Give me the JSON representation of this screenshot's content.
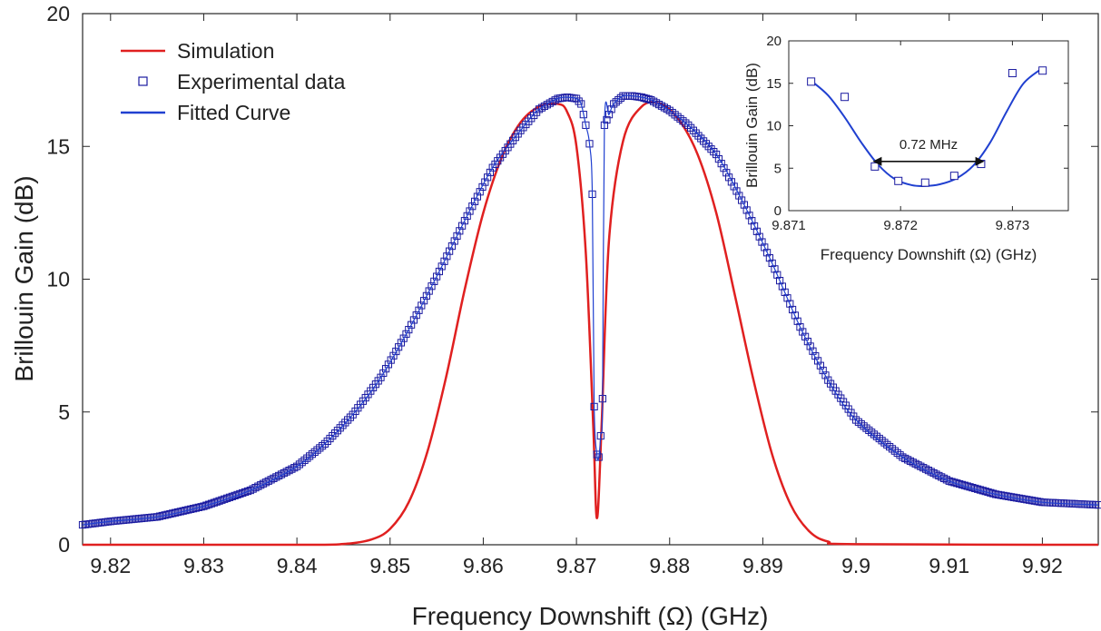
{
  "chart_data": [
    {
      "type": "line",
      "title": "",
      "xlabel": "Frequency Downshift (Ω) (GHz)",
      "ylabel": "Brillouin Gain (dB)",
      "xlim": [
        9.817,
        9.926
      ],
      "ylim": [
        0,
        20
      ],
      "xticks": [
        "9.82",
        "9.83",
        "9.84",
        "9.85",
        "9.86",
        "9.87",
        "9.88",
        "9.89",
        "9.9",
        "9.91",
        "9.92"
      ],
      "yticks": [
        "0",
        "5",
        "10",
        "15",
        "20"
      ],
      "legend": [
        "Simulation",
        "Experimental data",
        "Fitted Curve"
      ],
      "legend_position": "top-left",
      "grid": false,
      "colors": {
        "simulation": "#e02020",
        "experimental": "#1a1aa0",
        "fitted": "#2040d0"
      },
      "series": [
        {
          "name": "Simulation",
          "style": "line",
          "x": [
            9.817,
            9.84,
            9.845,
            9.848,
            9.85,
            9.852,
            9.854,
            9.856,
            9.858,
            9.86,
            9.862,
            9.864,
            9.866,
            9.868,
            9.869,
            9.87,
            9.871,
            9.8718,
            9.8722,
            9.8727,
            9.8735,
            9.875,
            9.877,
            9.879,
            9.881,
            9.883,
            9.885,
            9.887,
            9.889,
            9.891,
            9.893,
            9.895,
            9.897,
            9.9,
            9.926
          ],
          "y": [
            0,
            0,
            0.03,
            0.2,
            0.6,
            1.6,
            3.5,
            6.3,
            9.6,
            12.5,
            14.6,
            15.9,
            16.5,
            16.6,
            16.3,
            15.0,
            11.0,
            4.5,
            1.0,
            4.5,
            11.5,
            15.2,
            16.5,
            16.6,
            16.0,
            14.7,
            12.5,
            9.4,
            6.2,
            3.4,
            1.5,
            0.5,
            0.12,
            0.02,
            0
          ]
        },
        {
          "name": "Experimental data",
          "style": "markers",
          "x": [
            9.817,
            9.82,
            9.825,
            9.83,
            9.835,
            9.84,
            9.843,
            9.846,
            9.849,
            9.852,
            9.855,
            9.858,
            9.861,
            9.864,
            9.866,
            9.868,
            9.869,
            9.87,
            9.8705,
            9.871,
            9.8714,
            9.8717,
            9.8719,
            9.8722,
            9.8724,
            9.8726,
            9.8728,
            9.873,
            9.8735,
            9.874,
            9.875,
            9.876,
            9.877,
            9.878,
            9.88,
            9.882,
            9.885,
            9.888,
            9.891,
            9.894,
            9.897,
            9.9,
            9.905,
            9.91,
            9.915,
            9.92,
            9.926
          ],
          "y": [
            0.75,
            0.88,
            1.05,
            1.45,
            2.05,
            2.95,
            3.8,
            4.9,
            6.3,
            8.1,
            10.1,
            12.2,
            14.2,
            15.6,
            16.4,
            16.8,
            16.85,
            16.8,
            16.6,
            15.8,
            15.1,
            13.2,
            5.2,
            3.4,
            3.3,
            4.1,
            5.5,
            15.8,
            16.2,
            16.6,
            16.9,
            16.9,
            16.85,
            16.75,
            16.35,
            15.8,
            14.7,
            12.8,
            10.6,
            8.2,
            6.2,
            4.7,
            3.3,
            2.4,
            1.9,
            1.6,
            1.5
          ]
        },
        {
          "name": "Fitted Curve",
          "style": "line",
          "x": [
            9.817,
            9.82,
            9.825,
            9.83,
            9.835,
            9.84,
            9.843,
            9.846,
            9.849,
            9.852,
            9.855,
            9.858,
            9.861,
            9.864,
            9.866,
            9.868,
            9.869,
            9.87,
            9.8705,
            9.871,
            9.8714,
            9.8717,
            9.8719,
            9.8722,
            9.8724,
            9.8726,
            9.8728,
            9.873,
            9.8735,
            9.874,
            9.875,
            9.876,
            9.877,
            9.878,
            9.88,
            9.882,
            9.885,
            9.888,
            9.891,
            9.894,
            9.897,
            9.9,
            9.905,
            9.91,
            9.915,
            9.92,
            9.926
          ],
          "y": [
            0.75,
            0.88,
            1.05,
            1.45,
            2.05,
            2.95,
            3.8,
            4.9,
            6.3,
            8.1,
            10.1,
            12.2,
            14.2,
            15.6,
            16.4,
            16.8,
            16.85,
            16.8,
            16.6,
            15.8,
            15.1,
            13.2,
            5.2,
            3.4,
            3.3,
            4.1,
            5.5,
            15.8,
            16.2,
            16.6,
            16.9,
            16.9,
            16.85,
            16.75,
            16.35,
            15.8,
            14.7,
            12.8,
            10.6,
            8.2,
            6.2,
            4.7,
            3.3,
            2.4,
            1.9,
            1.6,
            1.5
          ]
        }
      ]
    },
    {
      "type": "scatter",
      "title": "",
      "xlabel": "Frequency Downshift (Ω) (GHz)",
      "ylabel": "Brillouin Gain (dB)",
      "xlim": [
        9.871,
        9.8735
      ],
      "ylim": [
        0,
        20
      ],
      "xticks": [
        "9.871",
        "9.872",
        "9.873"
      ],
      "yticks": [
        "0",
        "5",
        "10",
        "15",
        "20"
      ],
      "annotation": "0.72 MHz",
      "annotation_span": [
        9.87175,
        9.87275
      ],
      "annotation_y": 5.8,
      "grid": false,
      "series": [
        {
          "style": "markers",
          "x": [
            9.8712,
            9.8715,
            9.87177,
            9.87198,
            9.87222,
            9.87248,
            9.87272,
            9.873,
            9.87327
          ],
          "y": [
            15.2,
            13.4,
            5.2,
            3.5,
            3.3,
            4.1,
            5.5,
            16.2,
            16.5
          ]
        },
        {
          "style": "line",
          "x": [
            9.8712,
            9.87135,
            9.8715,
            9.87165,
            9.8718,
            9.87195,
            9.8721,
            9.87222,
            9.87235,
            9.8725,
            9.87265,
            9.8728,
            9.87295,
            9.8731,
            9.87327
          ],
          "y": [
            15.3,
            13.6,
            11.0,
            8.0,
            5.4,
            3.7,
            3.0,
            2.9,
            3.1,
            3.8,
            5.3,
            8.0,
            11.7,
            15.0,
            16.8
          ]
        }
      ]
    }
  ]
}
